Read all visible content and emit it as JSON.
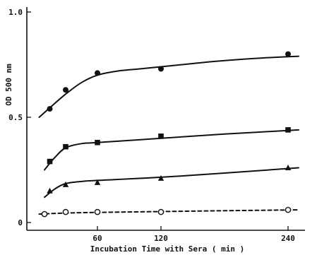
{
  "chart_data": {
    "type": "line",
    "title": "",
    "xlabel": "Incubation Time with Sera  ( min )",
    "ylabel": "OD  500 nm",
    "xlim": [
      0,
      262
    ],
    "ylim": [
      0,
      1.0
    ],
    "x_ticks": [
      60,
      120,
      240
    ],
    "x_tick_labels": [
      "60",
      "120",
      "240"
    ],
    "y_ticks": [
      0,
      0.5,
      1.0
    ],
    "y_tick_labels": [
      "0",
      "0.5",
      "1.0"
    ],
    "grid": false,
    "legend": "none",
    "series": [
      {
        "marker": "filled-circle",
        "line_style": "solid",
        "points": [
          [
            15,
            0.54
          ],
          [
            30,
            0.63
          ],
          [
            60,
            0.71
          ],
          [
            120,
            0.73
          ],
          [
            240,
            0.8
          ]
        ],
        "curve": [
          [
            5,
            0.5
          ],
          [
            15,
            0.545
          ],
          [
            30,
            0.61
          ],
          [
            45,
            0.665
          ],
          [
            60,
            0.7
          ],
          [
            80,
            0.72
          ],
          [
            100,
            0.73
          ],
          [
            130,
            0.745
          ],
          [
            170,
            0.765
          ],
          [
            210,
            0.78
          ],
          [
            250,
            0.79
          ]
        ]
      },
      {
        "marker": "filled-square",
        "line_style": "solid",
        "points": [
          [
            15,
            0.29
          ],
          [
            30,
            0.36
          ],
          [
            60,
            0.38
          ],
          [
            120,
            0.41
          ],
          [
            240,
            0.44
          ]
        ],
        "curve": [
          [
            10,
            0.25
          ],
          [
            20,
            0.31
          ],
          [
            30,
            0.355
          ],
          [
            45,
            0.375
          ],
          [
            60,
            0.38
          ],
          [
            120,
            0.4
          ],
          [
            180,
            0.42
          ],
          [
            250,
            0.44
          ]
        ]
      },
      {
        "marker": "filled-triangle",
        "line_style": "solid",
        "points": [
          [
            15,
            0.15
          ],
          [
            30,
            0.18
          ],
          [
            60,
            0.19
          ],
          [
            120,
            0.21
          ],
          [
            240,
            0.26
          ]
        ],
        "curve": [
          [
            10,
            0.12
          ],
          [
            20,
            0.16
          ],
          [
            30,
            0.185
          ],
          [
            45,
            0.195
          ],
          [
            60,
            0.2
          ],
          [
            120,
            0.215
          ],
          [
            180,
            0.235
          ],
          [
            250,
            0.26
          ]
        ]
      },
      {
        "marker": "open-circle",
        "line_style": "dashed",
        "points": [
          [
            10,
            0.04
          ],
          [
            30,
            0.05
          ],
          [
            60,
            0.05
          ],
          [
            120,
            0.05
          ],
          [
            240,
            0.06
          ]
        ],
        "curve": [
          [
            5,
            0.04
          ],
          [
            30,
            0.045
          ],
          [
            60,
            0.048
          ],
          [
            120,
            0.052
          ],
          [
            180,
            0.056
          ],
          [
            250,
            0.06
          ]
        ]
      }
    ]
  }
}
